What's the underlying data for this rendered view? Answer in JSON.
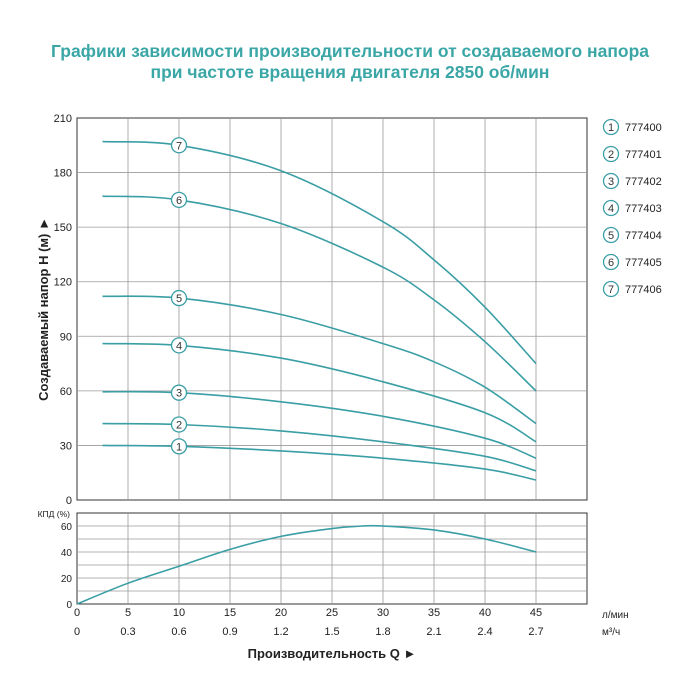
{
  "title_line1": "Графики зависимости производительности от создаваемого напора",
  "title_line2": "при частоте вращения двигателя 2850 об/мин",
  "colors": {
    "title": "#3aa6a6",
    "curve": "#3a9ea5",
    "grid": "#9a9a9a",
    "axis": "#333333",
    "label_circle": "#3a9ea5"
  },
  "chart_data": [
    {
      "type": "line",
      "ylabel": "Создаваемый напор H (м)",
      "ylim": [
        0,
        210
      ],
      "yticks": [
        0,
        30,
        60,
        90,
        120,
        150,
        180,
        210
      ],
      "xlim": [
        0,
        50
      ],
      "grid": true,
      "legend_position": "right",
      "series": [
        {
          "name": "777400",
          "marker": "1",
          "x": [
            2.5,
            10,
            20,
            30,
            40,
            45
          ],
          "y": [
            30,
            29.5,
            27,
            23,
            17,
            11
          ]
        },
        {
          "name": "777401",
          "marker": "2",
          "x": [
            2.5,
            10,
            20,
            30,
            40,
            45
          ],
          "y": [
            42,
            41.5,
            38,
            32,
            24,
            16
          ]
        },
        {
          "name": "777402",
          "marker": "3",
          "x": [
            2.5,
            10,
            20,
            30,
            40,
            45
          ],
          "y": [
            59.5,
            59,
            54,
            46,
            34,
            23
          ]
        },
        {
          "name": "777403",
          "marker": "4",
          "x": [
            2.5,
            10,
            20,
            30,
            40,
            45
          ],
          "y": [
            86,
            85,
            78,
            65,
            48,
            32
          ]
        },
        {
          "name": "777404",
          "marker": "5",
          "x": [
            2.5,
            10,
            20,
            30,
            35,
            40,
            45
          ],
          "y": [
            112,
            111,
            102,
            86,
            76,
            62,
            42
          ]
        },
        {
          "name": "777405",
          "marker": "6",
          "x": [
            2.5,
            10,
            20,
            30,
            35,
            40,
            45
          ],
          "y": [
            167,
            165,
            152,
            128,
            110,
            87,
            60
          ]
        },
        {
          "name": "777406",
          "marker": "7",
          "x": [
            2.5,
            10,
            20,
            30,
            35,
            40,
            45
          ],
          "y": [
            197,
            195,
            181,
            153,
            132,
            106,
            75
          ]
        }
      ],
      "marker_x": 10
    },
    {
      "type": "line",
      "ylabel": "КПД (%)",
      "ylim": [
        0,
        70
      ],
      "yticks": [
        0,
        20,
        40,
        60
      ],
      "xlim": [
        0,
        50
      ],
      "grid": true,
      "series": [
        {
          "x": [
            0,
            5,
            10,
            15,
            20,
            25,
            28,
            30,
            35,
            40,
            45
          ],
          "y": [
            0,
            16,
            29,
            42,
            52,
            58,
            60,
            60,
            57,
            50,
            40
          ]
        }
      ]
    }
  ],
  "x_axis": {
    "ticks_lmin": [
      "0",
      "5",
      "10",
      "15",
      "20",
      "25",
      "30",
      "35",
      "40",
      "45"
    ],
    "ticks_m3h": [
      "0",
      "0.3",
      "0.6",
      "0.9",
      "1.2",
      "1.5",
      "1.8",
      "2.1",
      "2.4",
      "2.7"
    ],
    "unit_lmin": "л/мин",
    "unit_m3h": "м³/ч",
    "label": "Производительность Q"
  },
  "arrow_glyph": "►"
}
